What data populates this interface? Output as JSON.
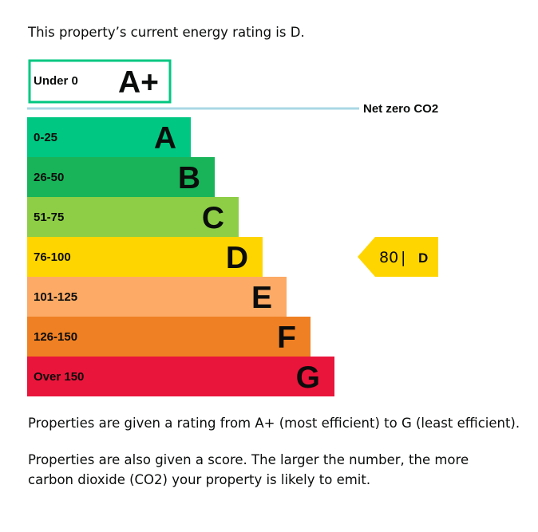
{
  "intro_text": "This property’s current energy rating is D.",
  "chart_data": {
    "type": "bar",
    "categories": [
      "A",
      "B",
      "C",
      "D",
      "E",
      "F",
      "G"
    ],
    "ranges": [
      "0-25",
      "26-50",
      "51-75",
      "76-100",
      "101-125",
      "126-150",
      "Over 150"
    ],
    "colors": [
      "#00c781",
      "#19b459",
      "#8dce46",
      "#ffd500",
      "#fcaa65",
      "#ef8023",
      "#e9153b"
    ],
    "top_band": {
      "label": "A+",
      "range": "Under 0",
      "border_color": "#00c781"
    },
    "net_zero_label": "Net zero CO2",
    "net_zero_line_color": "#a8d8e4",
    "current": {
      "score": 80,
      "letter": "D",
      "separator": "|",
      "color": "#ffd500"
    }
  },
  "info_text_1": "Properties are given a rating from A+ (most efficient) to G (least efficient).",
  "info_text_2": "Properties are also given a score. The larger the number, the more carbon dioxide (CO2) your property is likely to emit."
}
